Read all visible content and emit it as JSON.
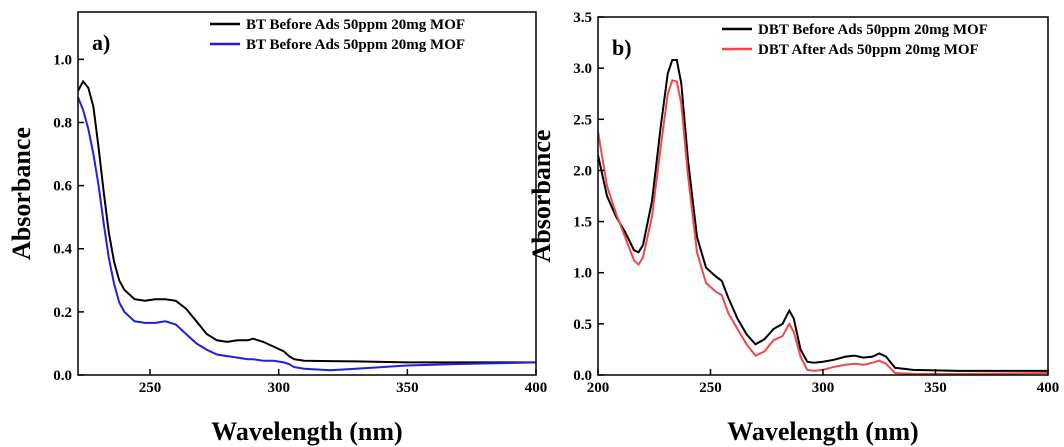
{
  "chart_data": [
    {
      "type": "line",
      "annotation": "a)",
      "x_label": "Wavelength (nm)",
      "y_label": "Absorbance",
      "xlim": [
        222,
        400
      ],
      "ylim": [
        0,
        1.15
      ],
      "xticks": [
        250,
        300,
        350,
        400
      ],
      "yticks": [
        {
          "value": 0,
          "label": "0.0"
        },
        0.2,
        0.4,
        0.6,
        0.8,
        {
          "value": 1,
          "label": "1.0"
        }
      ],
      "legend": "upper right",
      "x": [
        222,
        224,
        226,
        228,
        230,
        232,
        234,
        236,
        238,
        240,
        244,
        248,
        252,
        256,
        260,
        264,
        268,
        272,
        276,
        280,
        284,
        288,
        290,
        294,
        298,
        302,
        304,
        306,
        310,
        320,
        330,
        350,
        370,
        400
      ],
      "series": [
        {
          "name": "BT Before Ads 50ppm 20mg MOF",
          "color": "#000000",
          "values": [
            0.9,
            0.93,
            0.91,
            0.85,
            0.72,
            0.58,
            0.45,
            0.36,
            0.3,
            0.27,
            0.24,
            0.235,
            0.24,
            0.24,
            0.235,
            0.21,
            0.17,
            0.13,
            0.11,
            0.105,
            0.11,
            0.11,
            0.115,
            0.105,
            0.09,
            0.075,
            0.06,
            0.05,
            0.045,
            0.044,
            0.043,
            0.04,
            0.04,
            0.04
          ]
        },
        {
          "name": "BT Before Ads 50ppm 20mg MOF",
          "color": "#1f1fe0",
          "values": [
            0.88,
            0.84,
            0.78,
            0.7,
            0.6,
            0.48,
            0.37,
            0.29,
            0.23,
            0.2,
            0.17,
            0.165,
            0.165,
            0.17,
            0.16,
            0.13,
            0.1,
            0.08,
            0.065,
            0.06,
            0.055,
            0.05,
            0.05,
            0.045,
            0.045,
            0.04,
            0.035,
            0.025,
            0.02,
            0.015,
            0.02,
            0.03,
            0.035,
            0.04
          ]
        }
      ]
    },
    {
      "type": "line",
      "annotation": "b)",
      "x_label": "Wavelength (nm)",
      "y_label": "Absorbance",
      "xlim": [
        200,
        400
      ],
      "ylim": [
        0,
        3.5
      ],
      "xticks": [
        200,
        250,
        300,
        350,
        400
      ],
      "yticks": [
        {
          "value": 0,
          "label": "0.0"
        },
        0.5,
        {
          "value": 1,
          "label": "1.0"
        },
        1.5,
        {
          "value": 2,
          "label": "2.0"
        },
        2.5,
        {
          "value": 3,
          "label": "3.0"
        },
        3.5
      ],
      "legend": "upper right",
      "x": [
        200,
        204,
        208,
        212,
        216,
        218,
        220,
        224,
        228,
        231,
        233,
        235,
        237,
        240,
        244,
        248,
        252,
        255,
        258,
        262,
        266,
        270,
        274,
        278,
        282,
        285,
        287,
        290,
        293,
        296,
        300,
        305,
        310,
        314,
        318,
        322,
        325,
        328,
        332,
        340,
        360,
        400
      ],
      "series": [
        {
          "name": "DBT Before Ads 50ppm 20mg MOF",
          "color": "#000000",
          "values": [
            2.15,
            1.75,
            1.55,
            1.4,
            1.22,
            1.2,
            1.27,
            1.7,
            2.45,
            2.95,
            3.08,
            3.08,
            2.85,
            2.1,
            1.35,
            1.05,
            0.97,
            0.92,
            0.75,
            0.55,
            0.4,
            0.3,
            0.35,
            0.45,
            0.5,
            0.63,
            0.55,
            0.25,
            0.13,
            0.12,
            0.13,
            0.15,
            0.18,
            0.19,
            0.17,
            0.18,
            0.21,
            0.18,
            0.07,
            0.05,
            0.04,
            0.04
          ]
        },
        {
          "name": "DBT After Ads 50ppm 20mg MOF",
          "color": "#f0484a",
          "values": [
            2.38,
            1.85,
            1.58,
            1.35,
            1.12,
            1.08,
            1.15,
            1.55,
            2.25,
            2.75,
            2.88,
            2.87,
            2.65,
            1.95,
            1.2,
            0.9,
            0.82,
            0.78,
            0.6,
            0.45,
            0.3,
            0.19,
            0.23,
            0.34,
            0.38,
            0.5,
            0.42,
            0.18,
            0.05,
            0.04,
            0.05,
            0.08,
            0.1,
            0.11,
            0.1,
            0.12,
            0.14,
            0.11,
            0.02,
            0.01,
            0.01,
            0.02
          ]
        }
      ]
    }
  ]
}
